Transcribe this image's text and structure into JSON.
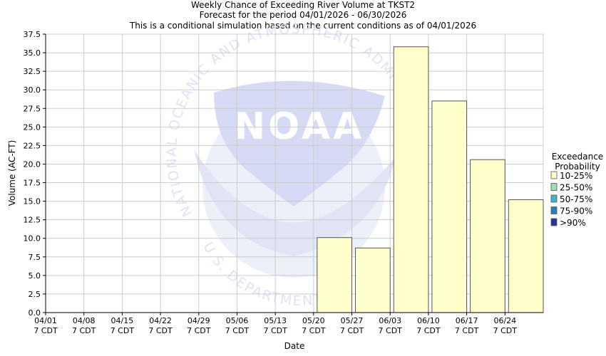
{
  "chart_data": {
    "type": "bar",
    "title_lines": [
      "Weekly Chance of Exceeding River Volume at TKST2",
      "Forecast for the period 04/01/2026 - 06/30/2026",
      "This is a conditional simulation based on the current conditions as of 04/01/2026"
    ],
    "xlabel": "Date",
    "ylabel": "Volume (AC-FT)",
    "ylim": [
      0,
      37.5
    ],
    "y_ticks": [
      "0.0",
      "2.5",
      "5.0",
      "7.5",
      "10.0",
      "12.5",
      "15.0",
      "17.5",
      "20.0",
      "22.5",
      "25.0",
      "27.5",
      "30.0",
      "32.5",
      "35.0",
      "37.5"
    ],
    "categories": [
      "04/01",
      "04/08",
      "04/15",
      "04/22",
      "04/29",
      "05/06",
      "05/13",
      "05/20",
      "05/27",
      "06/03",
      "06/10",
      "06/17",
      "06/24"
    ],
    "category_sublabel": "7 CDT",
    "series": [
      {
        "name": "10-25%",
        "color": "#ffffcc",
        "values": [
          null,
          null,
          null,
          null,
          null,
          null,
          null,
          10.1,
          8.7,
          35.8,
          28.5,
          20.6,
          15.2
        ]
      }
    ],
    "grid": true,
    "legend": {
      "position": "right",
      "title_lines": [
        "Exceedance",
        "Probability"
      ],
      "items": [
        {
          "label": "10-25%",
          "color": "#ffffcc"
        },
        {
          "label": "25-50%",
          "color": "#a1dab4"
        },
        {
          "label": "50-75%",
          "color": "#41b6c4"
        },
        {
          "label": "75-90%",
          "color": "#2c7fb8"
        },
        {
          "label": ">90%",
          "color": "#253494"
        }
      ]
    },
    "watermark": {
      "logo_text": "NOAA",
      "ring_text_top": "NATIONAL OCEANIC AND ATMOSPHERIC ADMINISTRATION",
      "ring_text_bottom": "U.S. DEPARTMENT OF COMMERCE"
    }
  }
}
